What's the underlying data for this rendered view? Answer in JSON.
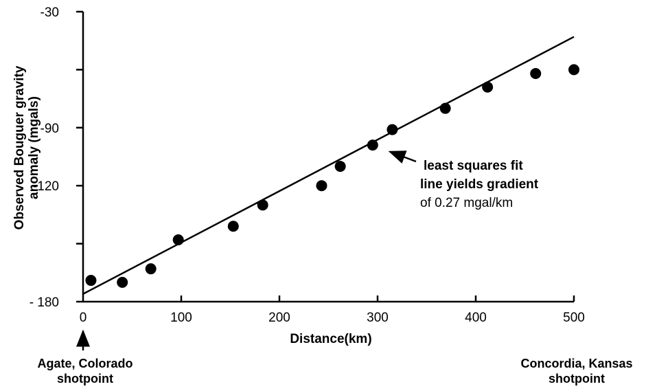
{
  "chart_data": {
    "type": "scatter",
    "title": "",
    "xlabel": "Distance(km)",
    "ylabel_lines": [
      "Observed Bouguer gravity",
      "anomaly (mgals)"
    ],
    "xlim": [
      0,
      500
    ],
    "ylim": [
      -180,
      -30
    ],
    "x_ticks": [
      0,
      100,
      200,
      300,
      400,
      500
    ],
    "x_tick_labels": [
      "0",
      "100",
      "200",
      "300",
      "400",
      "500"
    ],
    "y_ticks": [
      -30,
      -90,
      -120,
      -180
    ],
    "y_tick_labels": [
      "-30",
      "-90",
      "-120",
      "- 180"
    ],
    "y_minor_ticks": [
      -60,
      -150
    ],
    "grid": false,
    "points": [
      {
        "x": 8,
        "y": -169
      },
      {
        "x": 40,
        "y": -170
      },
      {
        "x": 69,
        "y": -163
      },
      {
        "x": 97,
        "y": -148
      },
      {
        "x": 153,
        "y": -141
      },
      {
        "x": 183,
        "y": -130
      },
      {
        "x": 243,
        "y": -120
      },
      {
        "x": 262,
        "y": -110
      },
      {
        "x": 295,
        "y": -99
      },
      {
        "x": 315,
        "y": -91
      },
      {
        "x": 369,
        "y": -80
      },
      {
        "x": 412,
        "y": -69
      },
      {
        "x": 461,
        "y": -62
      },
      {
        "x": 500,
        "y": -60
      }
    ],
    "fit_line": {
      "x": [
        0,
        500
      ],
      "y": [
        -176,
        -43
      ]
    },
    "annotation": {
      "lines": [
        "least squares fit",
        "line yields gradient",
        "of 0.27 mgal/km"
      ],
      "arrow_target": {
        "x": 307,
        "y": -101
      }
    },
    "sites": [
      {
        "lines": [
          "Agate, Colorado",
          "shotpoint"
        ],
        "x": 0
      },
      {
        "lines": [
          "Concordia, Kansas",
          "shotpoint"
        ],
        "x": 500
      }
    ]
  }
}
